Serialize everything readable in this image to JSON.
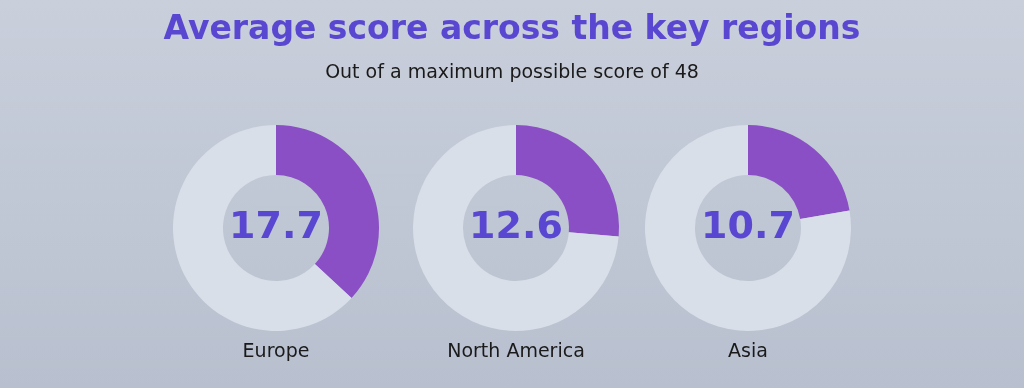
{
  "chart_data": [
    {
      "type": "donut",
      "title": "Average score across the key regions",
      "subtitle": "Out of a maximum possible score of 48",
      "xlabel": "Europe",
      "categories": [
        null,
        null
      ],
      "values": [
        36.9,
        63.1
      ],
      "colors": [
        "#8a4fc4",
        "#d8dfe9"
      ],
      "annotations": [
        "17.7"
      ]
    },
    {
      "type": "donut",
      "xlabel": "North America",
      "categories": [
        null,
        null
      ],
      "values": [
        26.3,
        73.7
      ],
      "colors": [
        "#8a4fc4",
        "#d8dfe9"
      ],
      "annotations": [
        "12.6"
      ]
    },
    {
      "type": "donut",
      "xlabel": "Asia",
      "categories": [
        null,
        null
      ],
      "values": [
        22.3,
        77.7
      ],
      "colors": [
        "#8a4fc4",
        "#d8dfe9"
      ],
      "annotations": [
        "10.7"
      ]
    }
  ]
}
